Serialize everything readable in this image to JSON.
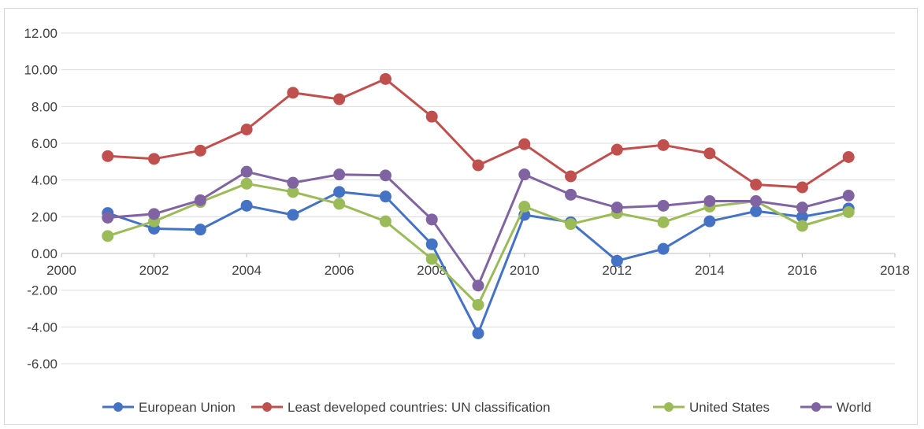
{
  "chart_data": {
    "type": "line",
    "title": "",
    "xlabel": "",
    "ylabel": "",
    "xlim": [
      2000,
      2018
    ],
    "ylim": [
      -6,
      12
    ],
    "x_ticks": [
      "2000",
      "2002",
      "2004",
      "2006",
      "2008",
      "2010",
      "2012",
      "2014",
      "2016",
      "2018"
    ],
    "y_ticks": [
      "12.00",
      "10.00",
      "8.00",
      "6.00",
      "4.00",
      "2.00",
      "0.00",
      "-2.00",
      "-4.00",
      "-6.00"
    ],
    "grid": "horizontal",
    "legend_position": "bottom",
    "x": [
      2001,
      2002,
      2003,
      2004,
      2005,
      2006,
      2007,
      2008,
      2009,
      2010,
      2011,
      2012,
      2013,
      2014,
      2015,
      2016,
      2017
    ],
    "series": [
      {
        "name": "European Union",
        "color": "#4472c4",
        "values": [
          2.2,
          1.35,
          1.3,
          2.6,
          2.1,
          3.35,
          3.1,
          0.5,
          -4.35,
          2.1,
          1.7,
          -0.4,
          0.25,
          1.75,
          2.3,
          2.0,
          2.45
        ]
      },
      {
        "name": "Least developed countries: UN classification",
        "color": "#c0504d",
        "values": [
          5.3,
          5.15,
          5.6,
          6.75,
          8.75,
          8.4,
          9.5,
          7.45,
          4.8,
          5.95,
          4.2,
          5.65,
          5.9,
          5.45,
          3.75,
          3.6,
          5.25
        ]
      },
      {
        "name": "United States",
        "color": "#9bbb59",
        "values": [
          0.95,
          1.75,
          2.8,
          3.8,
          3.35,
          2.7,
          1.75,
          -0.3,
          -2.8,
          2.55,
          1.6,
          2.2,
          1.7,
          2.55,
          2.85,
          1.5,
          2.25
        ]
      },
      {
        "name": "World",
        "color": "#8064a2",
        "values": [
          1.95,
          2.15,
          2.9,
          4.45,
          3.85,
          4.3,
          4.25,
          1.85,
          -1.75,
          4.3,
          3.2,
          2.5,
          2.6,
          2.85,
          2.85,
          2.5,
          3.15
        ]
      }
    ]
  }
}
